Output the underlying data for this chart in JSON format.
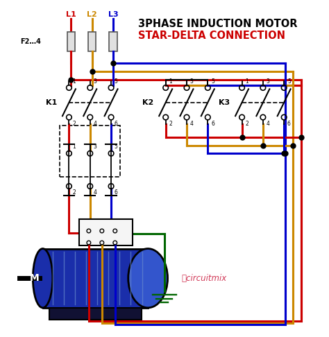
{
  "title_line1": "3PHASE INDUCTION MOTOR",
  "title_line2": "STAR-DELTA CONNECTION",
  "title_color1": "#000000",
  "title_color2": "#cc0000",
  "bg_color": "#ffffff",
  "wire_red": "#cc0000",
  "wire_yellow": "#cc8800",
  "wire_blue": "#0000cc",
  "wire_green": "#006600",
  "motor_body_color": "#1a2eaa",
  "switch_color": "#000000",
  "label_L1": "L1",
  "label_L2": "L2",
  "label_L3": "L3",
  "label_K1": "K1",
  "label_K2": "K2",
  "label_K3": "K3",
  "label_M": "M",
  "label_F": "F2…4",
  "watermark": "ⓘcircuitmix",
  "figw": 4.74,
  "figh": 4.86
}
